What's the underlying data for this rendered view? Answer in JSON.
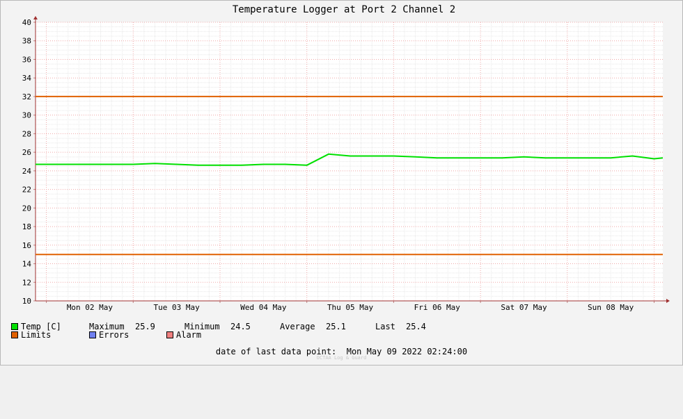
{
  "chart_data": {
    "type": "line",
    "title": "Temperature Logger at Port 2 Channel 2",
    "ylim": [
      10,
      40
    ],
    "yticks": [
      10,
      12,
      14,
      16,
      18,
      20,
      22,
      24,
      26,
      28,
      30,
      32,
      34,
      36,
      38,
      40
    ],
    "xlim": [
      "2022-05-01 21:00",
      "2022-05-09 02:24"
    ],
    "xtick_labels": [
      "Mon 02 May",
      "Tue 03 May",
      "Wed 04 May",
      "Thu 05 May",
      "Fri 06 May",
      "Sat 07 May",
      "Sun 08 May"
    ],
    "grid": true,
    "series": [
      {
        "name": "Temp [C]",
        "color": "#00e000",
        "x": [
          "2022-05-01 21:00",
          "2022-05-02 06:00",
          "2022-05-02 18:00",
          "2022-05-03 00:00",
          "2022-05-03 06:00",
          "2022-05-03 12:00",
          "2022-05-03 18:00",
          "2022-05-04 00:00",
          "2022-05-04 06:00",
          "2022-05-04 12:00",
          "2022-05-04 18:00",
          "2022-05-05 00:00",
          "2022-05-05 06:00",
          "2022-05-05 12:00",
          "2022-05-05 18:00",
          "2022-05-06 00:00",
          "2022-05-06 06:00",
          "2022-05-06 12:00",
          "2022-05-06 18:00",
          "2022-05-07 00:00",
          "2022-05-07 06:00",
          "2022-05-07 12:00",
          "2022-05-07 18:00",
          "2022-05-08 00:00",
          "2022-05-08 06:00",
          "2022-05-08 12:00",
          "2022-05-08 18:00",
          "2022-05-09 00:00",
          "2022-05-09 02:24"
        ],
        "values": [
          24.7,
          24.7,
          24.7,
          24.7,
          24.8,
          24.7,
          24.6,
          24.6,
          24.6,
          24.7,
          24.7,
          24.6,
          25.8,
          25.6,
          25.6,
          25.6,
          25.5,
          25.4,
          25.4,
          25.4,
          25.4,
          25.5,
          25.4,
          25.4,
          25.4,
          25.4,
          25.6,
          25.3,
          25.4
        ]
      },
      {
        "name": "Limits",
        "color": "#e06000",
        "x": [
          "2022-05-01 21:00",
          "2022-05-09 02:24"
        ],
        "values": [
          32,
          32
        ]
      },
      {
        "name": "Limits",
        "color": "#e06000",
        "x": [
          "2022-05-01 21:00",
          "2022-05-09 02:24"
        ],
        "values": [
          15,
          15
        ]
      }
    ]
  },
  "legend": {
    "temp_label": "Temp [C]",
    "maximum_label": "Maximum",
    "maximum_value": "25.9",
    "minimum_label": "Minimum",
    "minimum_value": "24.5",
    "average_label": "Average",
    "average_value": "25.1",
    "last_label": "Last",
    "last_value": "25.4",
    "limits_label": "Limits",
    "errors_label": "Errors",
    "alarm_label": "Alarm",
    "colors": {
      "temp": "#00e000",
      "limits": "#e06000",
      "errors": "#7080f0",
      "alarm": "#f08080"
    }
  },
  "footer": {
    "last_point_label": "date of last data point:",
    "last_point_value": "Mon May 09 2022 02:24:00",
    "watermark": "OCTAA Log & Guard"
  }
}
